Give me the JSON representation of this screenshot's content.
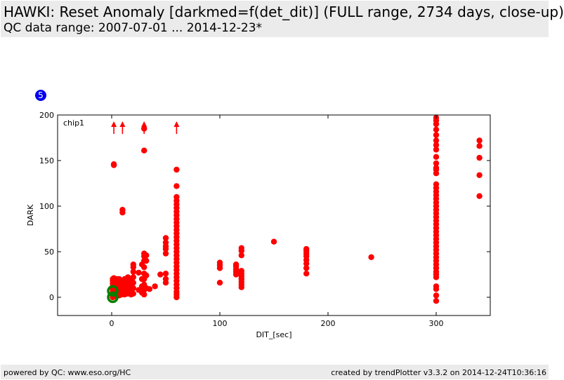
{
  "header": {
    "title": "HAWKI: Reset Anomaly [darkmed=f(det_dit)] (FULL range, 2734 days, close-up)",
    "subtitle": "QC data range: 2007-07-01 ... 2014-12-23*"
  },
  "badge": {
    "label": "5"
  },
  "footer": {
    "left": "powered by QC: www.eso.org/HC",
    "right": "created by trendPlotter v3.3.2 on 2014-12-24T10:36:16"
  },
  "colors": {
    "data": "#ff0000",
    "highlight": "#008000",
    "badge": "#0000ee",
    "background": "#ffffff",
    "band": "#ebebeb"
  },
  "chart_data": {
    "type": "scatter",
    "panel_label": "chip1",
    "xlabel": "DIT_[sec]",
    "ylabel": "DARK",
    "xlim": [
      -50,
      350
    ],
    "ylim": [
      -20,
      200
    ],
    "xticks": [
      0,
      100,
      200,
      300
    ],
    "yticks": [
      0,
      50,
      100,
      150,
      200
    ],
    "grid": false,
    "series": [
      {
        "color": "#ff0000",
        "points": [
          [
            1,
            0
          ],
          [
            1,
            2
          ],
          [
            1,
            5
          ],
          [
            1,
            8
          ],
          [
            1,
            10
          ],
          [
            1,
            12
          ],
          [
            1,
            15
          ],
          [
            1,
            18
          ],
          [
            1,
            20
          ],
          [
            2,
            3
          ],
          [
            2,
            6
          ],
          [
            2,
            9
          ],
          [
            2,
            14
          ],
          [
            2,
            17
          ],
          [
            2,
            21
          ],
          [
            2,
            145
          ],
          [
            2,
            146
          ],
          [
            3,
            1
          ],
          [
            3,
            4
          ],
          [
            3,
            8
          ],
          [
            3,
            12
          ],
          [
            3,
            16
          ],
          [
            3,
            19
          ],
          [
            4,
            2
          ],
          [
            4,
            7
          ],
          [
            4,
            11
          ],
          [
            4,
            15
          ],
          [
            4,
            18
          ],
          [
            5,
            3
          ],
          [
            5,
            6
          ],
          [
            5,
            10
          ],
          [
            5,
            14
          ],
          [
            5,
            20
          ],
          [
            6,
            4
          ],
          [
            6,
            9
          ],
          [
            6,
            13
          ],
          [
            6,
            17
          ],
          [
            7,
            2
          ],
          [
            7,
            6
          ],
          [
            7,
            11
          ],
          [
            7,
            16
          ],
          [
            7,
            20
          ],
          [
            8,
            5
          ],
          [
            8,
            10
          ],
          [
            8,
            15
          ],
          [
            9,
            3
          ],
          [
            9,
            8
          ],
          [
            9,
            12
          ],
          [
            9,
            18
          ],
          [
            10,
            4
          ],
          [
            10,
            7
          ],
          [
            10,
            13
          ],
          [
            10,
            17
          ],
          [
            10,
            93
          ],
          [
            10,
            96
          ],
          [
            12,
            3
          ],
          [
            12,
            8
          ],
          [
            12,
            14
          ],
          [
            12,
            20
          ],
          [
            14,
            5
          ],
          [
            14,
            11
          ],
          [
            14,
            17
          ],
          [
            15,
            4
          ],
          [
            15,
            9
          ],
          [
            15,
            15
          ],
          [
            15,
            22
          ],
          [
            16,
            6
          ],
          [
            16,
            12
          ],
          [
            16,
            18
          ],
          [
            18,
            3
          ],
          [
            18,
            8
          ],
          [
            18,
            14
          ],
          [
            18,
            20
          ],
          [
            20,
            4
          ],
          [
            20,
            10
          ],
          [
            20,
            16
          ],
          [
            20,
            22
          ],
          [
            20,
            28
          ],
          [
            20,
            33
          ],
          [
            20,
            36
          ],
          [
            25,
            8
          ],
          [
            25,
            27
          ],
          [
            28,
            5
          ],
          [
            28,
            12
          ],
          [
            28,
            20
          ],
          [
            28,
            36
          ],
          [
            30,
            3
          ],
          [
            30,
            8
          ],
          [
            30,
            14
          ],
          [
            30,
            20
          ],
          [
            30,
            26
          ],
          [
            30,
            33
          ],
          [
            30,
            40
          ],
          [
            30,
            45
          ],
          [
            30,
            48
          ],
          [
            30,
            161
          ],
          [
            30,
            185
          ],
          [
            32,
            10
          ],
          [
            32,
            24
          ],
          [
            32,
            40
          ],
          [
            32,
            46
          ],
          [
            35,
            9
          ],
          [
            40,
            12
          ],
          [
            45,
            25
          ],
          [
            50,
            16
          ],
          [
            50,
            20
          ],
          [
            50,
            26
          ],
          [
            50,
            48
          ],
          [
            50,
            53
          ],
          [
            50,
            56
          ],
          [
            50,
            60
          ],
          [
            50,
            65
          ],
          [
            60,
            0
          ],
          [
            60,
            3
          ],
          [
            60,
            6
          ],
          [
            60,
            10
          ],
          [
            60,
            14
          ],
          [
            60,
            18
          ],
          [
            60,
            22
          ],
          [
            60,
            26
          ],
          [
            60,
            30
          ],
          [
            60,
            34
          ],
          [
            60,
            38
          ],
          [
            60,
            42
          ],
          [
            60,
            46
          ],
          [
            60,
            50
          ],
          [
            60,
            54
          ],
          [
            60,
            58
          ],
          [
            60,
            62
          ],
          [
            60,
            66
          ],
          [
            60,
            70
          ],
          [
            60,
            74
          ],
          [
            60,
            78
          ],
          [
            60,
            82
          ],
          [
            60,
            86
          ],
          [
            60,
            90
          ],
          [
            60,
            94
          ],
          [
            60,
            98
          ],
          [
            60,
            102
          ],
          [
            60,
            106
          ],
          [
            60,
            110
          ],
          [
            60,
            122
          ],
          [
            60,
            140
          ],
          [
            100,
            16
          ],
          [
            100,
            32
          ],
          [
            100,
            35
          ],
          [
            100,
            38
          ],
          [
            115,
            25
          ],
          [
            115,
            28
          ],
          [
            115,
            31
          ],
          [
            115,
            34
          ],
          [
            115,
            36
          ],
          [
            120,
            11
          ],
          [
            120,
            14
          ],
          [
            120,
            17
          ],
          [
            120,
            20
          ],
          [
            120,
            23
          ],
          [
            120,
            26
          ],
          [
            120,
            29
          ],
          [
            120,
            46
          ],
          [
            120,
            51
          ],
          [
            120,
            54
          ],
          [
            150,
            61
          ],
          [
            180,
            26
          ],
          [
            180,
            32
          ],
          [
            180,
            37
          ],
          [
            180,
            41
          ],
          [
            180,
            45
          ],
          [
            180,
            48
          ],
          [
            180,
            51
          ],
          [
            180,
            53
          ],
          [
            240,
            44
          ],
          [
            300,
            -4
          ],
          [
            300,
            2
          ],
          [
            300,
            9
          ],
          [
            300,
            12
          ],
          [
            300,
            22
          ],
          [
            300,
            25
          ],
          [
            300,
            28
          ],
          [
            300,
            32
          ],
          [
            300,
            36
          ],
          [
            300,
            40
          ],
          [
            300,
            44
          ],
          [
            300,
            48
          ],
          [
            300,
            52
          ],
          [
            300,
            56
          ],
          [
            300,
            60
          ],
          [
            300,
            64
          ],
          [
            300,
            68
          ],
          [
            300,
            72
          ],
          [
            300,
            76
          ],
          [
            300,
            80
          ],
          [
            300,
            84
          ],
          [
            300,
            88
          ],
          [
            300,
            92
          ],
          [
            300,
            96
          ],
          [
            300,
            100
          ],
          [
            300,
            104
          ],
          [
            300,
            108
          ],
          [
            300,
            112
          ],
          [
            300,
            116
          ],
          [
            300,
            120
          ],
          [
            300,
            124
          ],
          [
            300,
            136
          ],
          [
            300,
            140
          ],
          [
            300,
            142
          ],
          [
            300,
            147
          ],
          [
            300,
            154
          ],
          [
            300,
            162
          ],
          [
            300,
            167
          ],
          [
            300,
            172
          ],
          [
            300,
            178
          ],
          [
            300,
            184
          ],
          [
            300,
            190
          ],
          [
            300,
            194
          ],
          [
            300,
            197
          ],
          [
            340,
            111
          ],
          [
            340,
            134
          ],
          [
            340,
            153
          ],
          [
            340,
            166
          ],
          [
            340,
            172
          ]
        ]
      },
      {
        "color": "#008000",
        "style": "hollow",
        "points": [
          [
            1,
            0
          ],
          [
            1,
            7
          ]
        ]
      }
    ],
    "offscale_markers": {
      "color": "#ff0000",
      "x": [
        2,
        10,
        30,
        60
      ]
    }
  }
}
